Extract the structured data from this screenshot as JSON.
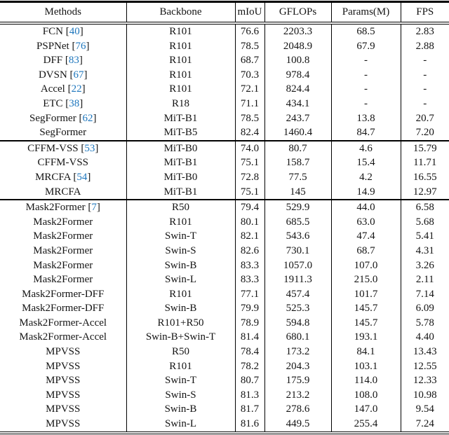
{
  "colors": {
    "citation": "#1d76bd",
    "text": "#141414",
    "rule": "#000000",
    "background": "#ffffff"
  },
  "table": {
    "columns": [
      "Methods",
      "Backbone",
      "mIoU",
      "GFLOPs",
      "Params(M)",
      "FPS"
    ],
    "groups": [
      {
        "rows": [
          {
            "method": "FCN",
            "cite": "40",
            "backbone": "R101",
            "miou": "76.6",
            "gflops": "2203.3",
            "params": "68.5",
            "fps": "2.83"
          },
          {
            "method": "PSPNet",
            "cite": "76",
            "backbone": "R101",
            "miou": "78.5",
            "gflops": "2048.9",
            "params": "67.9",
            "fps": "2.88"
          },
          {
            "method": "DFF",
            "cite": "83",
            "backbone": "R101",
            "miou": "68.7",
            "gflops": "100.8",
            "params": "-",
            "fps": "-"
          },
          {
            "method": "DVSN",
            "cite": "67",
            "backbone": "R101",
            "miou": "70.3",
            "gflops": "978.4",
            "params": "-",
            "fps": "-"
          },
          {
            "method": "Accel",
            "cite": "22",
            "backbone": "R101",
            "miou": "72.1",
            "gflops": "824.4",
            "params": "-",
            "fps": "-"
          },
          {
            "method": "ETC",
            "cite": "38",
            "backbone": "R18",
            "miou": "71.1",
            "gflops": "434.1",
            "params": "-",
            "fps": "-"
          },
          {
            "method": "SegFormer",
            "cite": "62",
            "backbone": "MiT-B1",
            "miou": "78.5",
            "gflops": "243.7",
            "params": "13.8",
            "fps": "20.7"
          },
          {
            "method": "SegFormer",
            "cite": "",
            "backbone": "MiT-B5",
            "miou": "82.4",
            "gflops": "1460.4",
            "params": "84.7",
            "fps": "7.20"
          }
        ]
      },
      {
        "rows": [
          {
            "method": "CFFM-VSS",
            "cite": "53",
            "backbone": "MiT-B0",
            "miou": "74.0",
            "gflops": "80.7",
            "params": "4.6",
            "fps": "15.79"
          },
          {
            "method": "CFFM-VSS",
            "cite": "",
            "backbone": "MiT-B1",
            "miou": "75.1",
            "gflops": "158.7",
            "params": "15.4",
            "fps": "11.71"
          },
          {
            "method": "MRCFA",
            "cite": "54",
            "backbone": "MiT-B0",
            "miou": "72.8",
            "gflops": "77.5",
            "params": "4.2",
            "fps": "16.55"
          },
          {
            "method": "MRCFA",
            "cite": "",
            "backbone": "MiT-B1",
            "miou": "75.1",
            "gflops": "145",
            "params": "14.9",
            "fps": "12.97"
          }
        ]
      },
      {
        "rows": [
          {
            "method": "Mask2Former",
            "cite": "7",
            "backbone": "R50",
            "miou": "79.4",
            "gflops": "529.9",
            "params": "44.0",
            "fps": "6.58"
          },
          {
            "method": "Mask2Former",
            "cite": "",
            "backbone": "R101",
            "miou": "80.1",
            "gflops": "685.5",
            "params": "63.0",
            "fps": "5.68"
          },
          {
            "method": "Mask2Former",
            "cite": "",
            "backbone": "Swin-T",
            "miou": "82.1",
            "gflops": "543.6",
            "params": "47.4",
            "fps": "5.41"
          },
          {
            "method": "Mask2Former",
            "cite": "",
            "backbone": "Swin-S",
            "miou": "82.6",
            "gflops": "730.1",
            "params": "68.7",
            "fps": "4.31"
          },
          {
            "method": "Mask2Former",
            "cite": "",
            "backbone": "Swin-B",
            "miou": "83.3",
            "gflops": "1057.0",
            "params": "107.0",
            "fps": "3.26"
          },
          {
            "method": "Mask2Former",
            "cite": "",
            "backbone": "Swin-L",
            "miou": "83.3",
            "gflops": "1911.3",
            "params": "215.0",
            "fps": "2.11"
          },
          {
            "method": "Mask2Former-DFF",
            "cite": "",
            "backbone": "R101",
            "miou": "77.1",
            "gflops": "457.4",
            "params": "101.7",
            "fps": "7.14"
          },
          {
            "method": "Mask2Former-DFF",
            "cite": "",
            "backbone": "Swin-B",
            "miou": "79.9",
            "gflops": "525.3",
            "params": "145.7",
            "fps": "6.09"
          },
          {
            "method": "Mask2Former-Accel",
            "cite": "",
            "backbone": "R101+R50",
            "miou": "78.9",
            "gflops": "594.8",
            "params": "145.7",
            "fps": "5.78"
          },
          {
            "method": "Mask2Former-Accel",
            "cite": "",
            "backbone": "Swin-B+Swin-T",
            "miou": "81.4",
            "gflops": "680.1",
            "params": "193.1",
            "fps": "4.40"
          },
          {
            "method": "MPVSS",
            "cite": "",
            "backbone": "R50",
            "miou": "78.4",
            "gflops": "173.2",
            "params": "84.1",
            "fps": "13.43"
          },
          {
            "method": "MPVSS",
            "cite": "",
            "backbone": "R101",
            "miou": "78.2",
            "gflops": "204.3",
            "params": "103.1",
            "fps": "12.55"
          },
          {
            "method": "MPVSS",
            "cite": "",
            "backbone": "Swin-T",
            "miou": "80.7",
            "gflops": "175.9",
            "params": "114.0",
            "fps": "12.33"
          },
          {
            "method": "MPVSS",
            "cite": "",
            "backbone": "Swin-S",
            "miou": "81.3",
            "gflops": "213.2",
            "params": "108.0",
            "fps": "10.98"
          },
          {
            "method": "MPVSS",
            "cite": "",
            "backbone": "Swin-B",
            "miou": "81.7",
            "gflops": "278.6",
            "params": "147.0",
            "fps": "9.54"
          },
          {
            "method": "MPVSS",
            "cite": "",
            "backbone": "Swin-L",
            "miou": "81.6",
            "gflops": "449.5",
            "params": "255.4",
            "fps": "7.24"
          }
        ]
      }
    ]
  }
}
